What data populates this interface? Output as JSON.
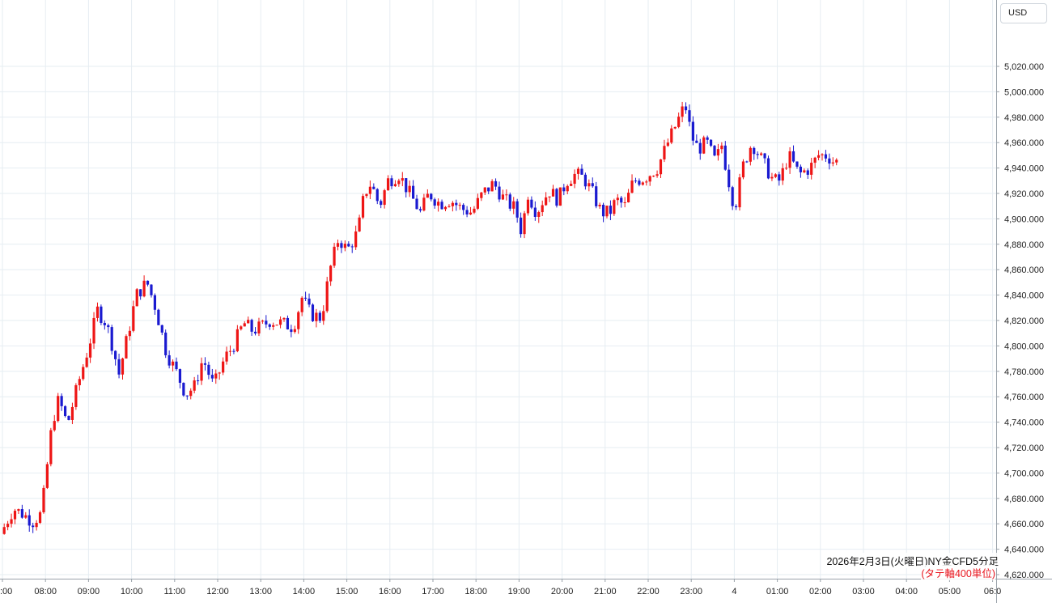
{
  "currency_label": "USD",
  "caption": {
    "line1": "2026年2月3日(火曜日)NY金CFD5分足",
    "line2": "(タテ軸400単位)"
  },
  "colors": {
    "up": "#ee1515",
    "down": "#1a1ad0",
    "grid": "#e6edf2",
    "axis": "#9aa2aa",
    "caption_red": "#e8121b"
  },
  "chart_data": {
    "type": "candlestick",
    "title": "",
    "xlabel": "",
    "ylabel": "",
    "ylim": [
      4615,
      5045
    ],
    "y_ticks": [
      4620,
      4640,
      4660,
      4680,
      4700,
      4720,
      4740,
      4760,
      4780,
      4800,
      4820,
      4840,
      4860,
      4880,
      4900,
      4920,
      4940,
      4960,
      4980,
      5000,
      5020
    ],
    "y_tick_labels": [
      "4,620.000",
      "4,640.000",
      "4,660.000",
      "4,680.000",
      "4,700.000",
      "4,720.000",
      "4,740.000",
      "4,760.000",
      "4,780.000",
      "4,800.000",
      "4,820.000",
      "4,840.000",
      "4,860.000",
      "4,880.000",
      "4,900.000",
      "4,920.000",
      "4,940.000",
      "4,960.000",
      "4,980.000",
      "5,000.000",
      "5,020.000"
    ],
    "x_ticks": [
      {
        "label": ":00",
        "hour": 7
      },
      {
        "label": "08:00",
        "hour": 8
      },
      {
        "label": "09:00",
        "hour": 9
      },
      {
        "label": "10:00",
        "hour": 10
      },
      {
        "label": "11:00",
        "hour": 11
      },
      {
        "label": "12:00",
        "hour": 12
      },
      {
        "label": "13:00",
        "hour": 13
      },
      {
        "label": "14:00",
        "hour": 14
      },
      {
        "label": "15:00",
        "hour": 15
      },
      {
        "label": "16:00",
        "hour": 16
      },
      {
        "label": "17:00",
        "hour": 17
      },
      {
        "label": "18:00",
        "hour": 18
      },
      {
        "label": "19:00",
        "hour": 19
      },
      {
        "label": "20:00",
        "hour": 20
      },
      {
        "label": "21:00",
        "hour": 21
      },
      {
        "label": "22:00",
        "hour": 22
      },
      {
        "label": "23:00",
        "hour": 23
      },
      {
        "label": "4",
        "hour": 24
      },
      {
        "label": "01:00",
        "hour": 25
      },
      {
        "label": "02:00",
        "hour": 26
      },
      {
        "label": "03:00",
        "hour": 27
      },
      {
        "label": "04:00",
        "hour": 28
      },
      {
        "label": "05:00",
        "hour": 29
      },
      {
        "label": "06:0",
        "hour": 30
      }
    ],
    "bar_interval_minutes": 5,
    "first_bar_hour": 7.0,
    "anchors": [
      [
        7.0,
        4652
      ],
      [
        7.3,
        4672
      ],
      [
        7.5,
        4668
      ],
      [
        7.75,
        4662
      ],
      [
        7.95,
        4668
      ],
      [
        8.2,
        4740
      ],
      [
        8.35,
        4758
      ],
      [
        8.55,
        4738
      ],
      [
        8.8,
        4770
      ],
      [
        9.05,
        4800
      ],
      [
        9.25,
        4828
      ],
      [
        9.45,
        4818
      ],
      [
        9.6,
        4800
      ],
      [
        9.75,
        4778
      ],
      [
        9.95,
        4808
      ],
      [
        10.15,
        4840
      ],
      [
        10.4,
        4850
      ],
      [
        10.6,
        4830
      ],
      [
        10.85,
        4795
      ],
      [
        11.1,
        4778
      ],
      [
        11.3,
        4762
      ],
      [
        11.5,
        4768
      ],
      [
        11.7,
        4790
      ],
      [
        11.95,
        4768
      ],
      [
        12.2,
        4790
      ],
      [
        12.4,
        4800
      ],
      [
        12.65,
        4818
      ],
      [
        12.85,
        4812
      ],
      [
        13.05,
        4815
      ],
      [
        13.25,
        4820
      ],
      [
        13.5,
        4818
      ],
      [
        13.8,
        4815
      ],
      [
        14.0,
        4838
      ],
      [
        14.2,
        4825
      ],
      [
        14.45,
        4822
      ],
      [
        14.65,
        4860
      ],
      [
        14.85,
        4885
      ],
      [
        15.05,
        4875
      ],
      [
        15.3,
        4890
      ],
      [
        15.45,
        4920
      ],
      [
        15.6,
        4928
      ],
      [
        15.8,
        4910
      ],
      [
        16.0,
        4930
      ],
      [
        16.25,
        4935
      ],
      [
        16.5,
        4920
      ],
      [
        16.75,
        4905
      ],
      [
        16.95,
        4920
      ],
      [
        17.2,
        4912
      ],
      [
        17.45,
        4915
      ],
      [
        17.7,
        4908
      ],
      [
        17.95,
        4905
      ],
      [
        18.2,
        4920
      ],
      [
        18.45,
        4928
      ],
      [
        18.7,
        4915
      ],
      [
        18.95,
        4908
      ],
      [
        19.1,
        4890
      ],
      [
        19.25,
        4920
      ],
      [
        19.45,
        4905
      ],
      [
        19.6,
        4915
      ],
      [
        19.75,
        4922
      ],
      [
        19.95,
        4915
      ],
      [
        20.15,
        4930
      ],
      [
        20.35,
        4935
      ],
      [
        20.55,
        4932
      ],
      [
        20.75,
        4920
      ],
      [
        20.95,
        4905
      ],
      [
        21.15,
        4905
      ],
      [
        21.3,
        4915
      ],
      [
        21.5,
        4910
      ],
      [
        21.7,
        4930
      ],
      [
        21.95,
        4932
      ],
      [
        22.25,
        4940
      ],
      [
        22.5,
        4960
      ],
      [
        22.7,
        4975
      ],
      [
        22.9,
        4990
      ],
      [
        23.05,
        4965
      ],
      [
        23.2,
        4955
      ],
      [
        23.4,
        4960
      ],
      [
        23.6,
        4945
      ],
      [
        23.75,
        4958
      ],
      [
        23.9,
        4932
      ],
      [
        24.05,
        4908
      ],
      [
        24.25,
        4942
      ],
      [
        24.45,
        4960
      ],
      [
        24.7,
        4945
      ],
      [
        24.95,
        4930
      ],
      [
        25.1,
        4930
      ],
      [
        25.3,
        4950
      ],
      [
        25.55,
        4935
      ],
      [
        25.8,
        4940
      ],
      [
        26.0,
        4950
      ],
      [
        26.2,
        4950
      ],
      [
        26.35,
        4945
      ]
    ],
    "last_close": 4945
  }
}
